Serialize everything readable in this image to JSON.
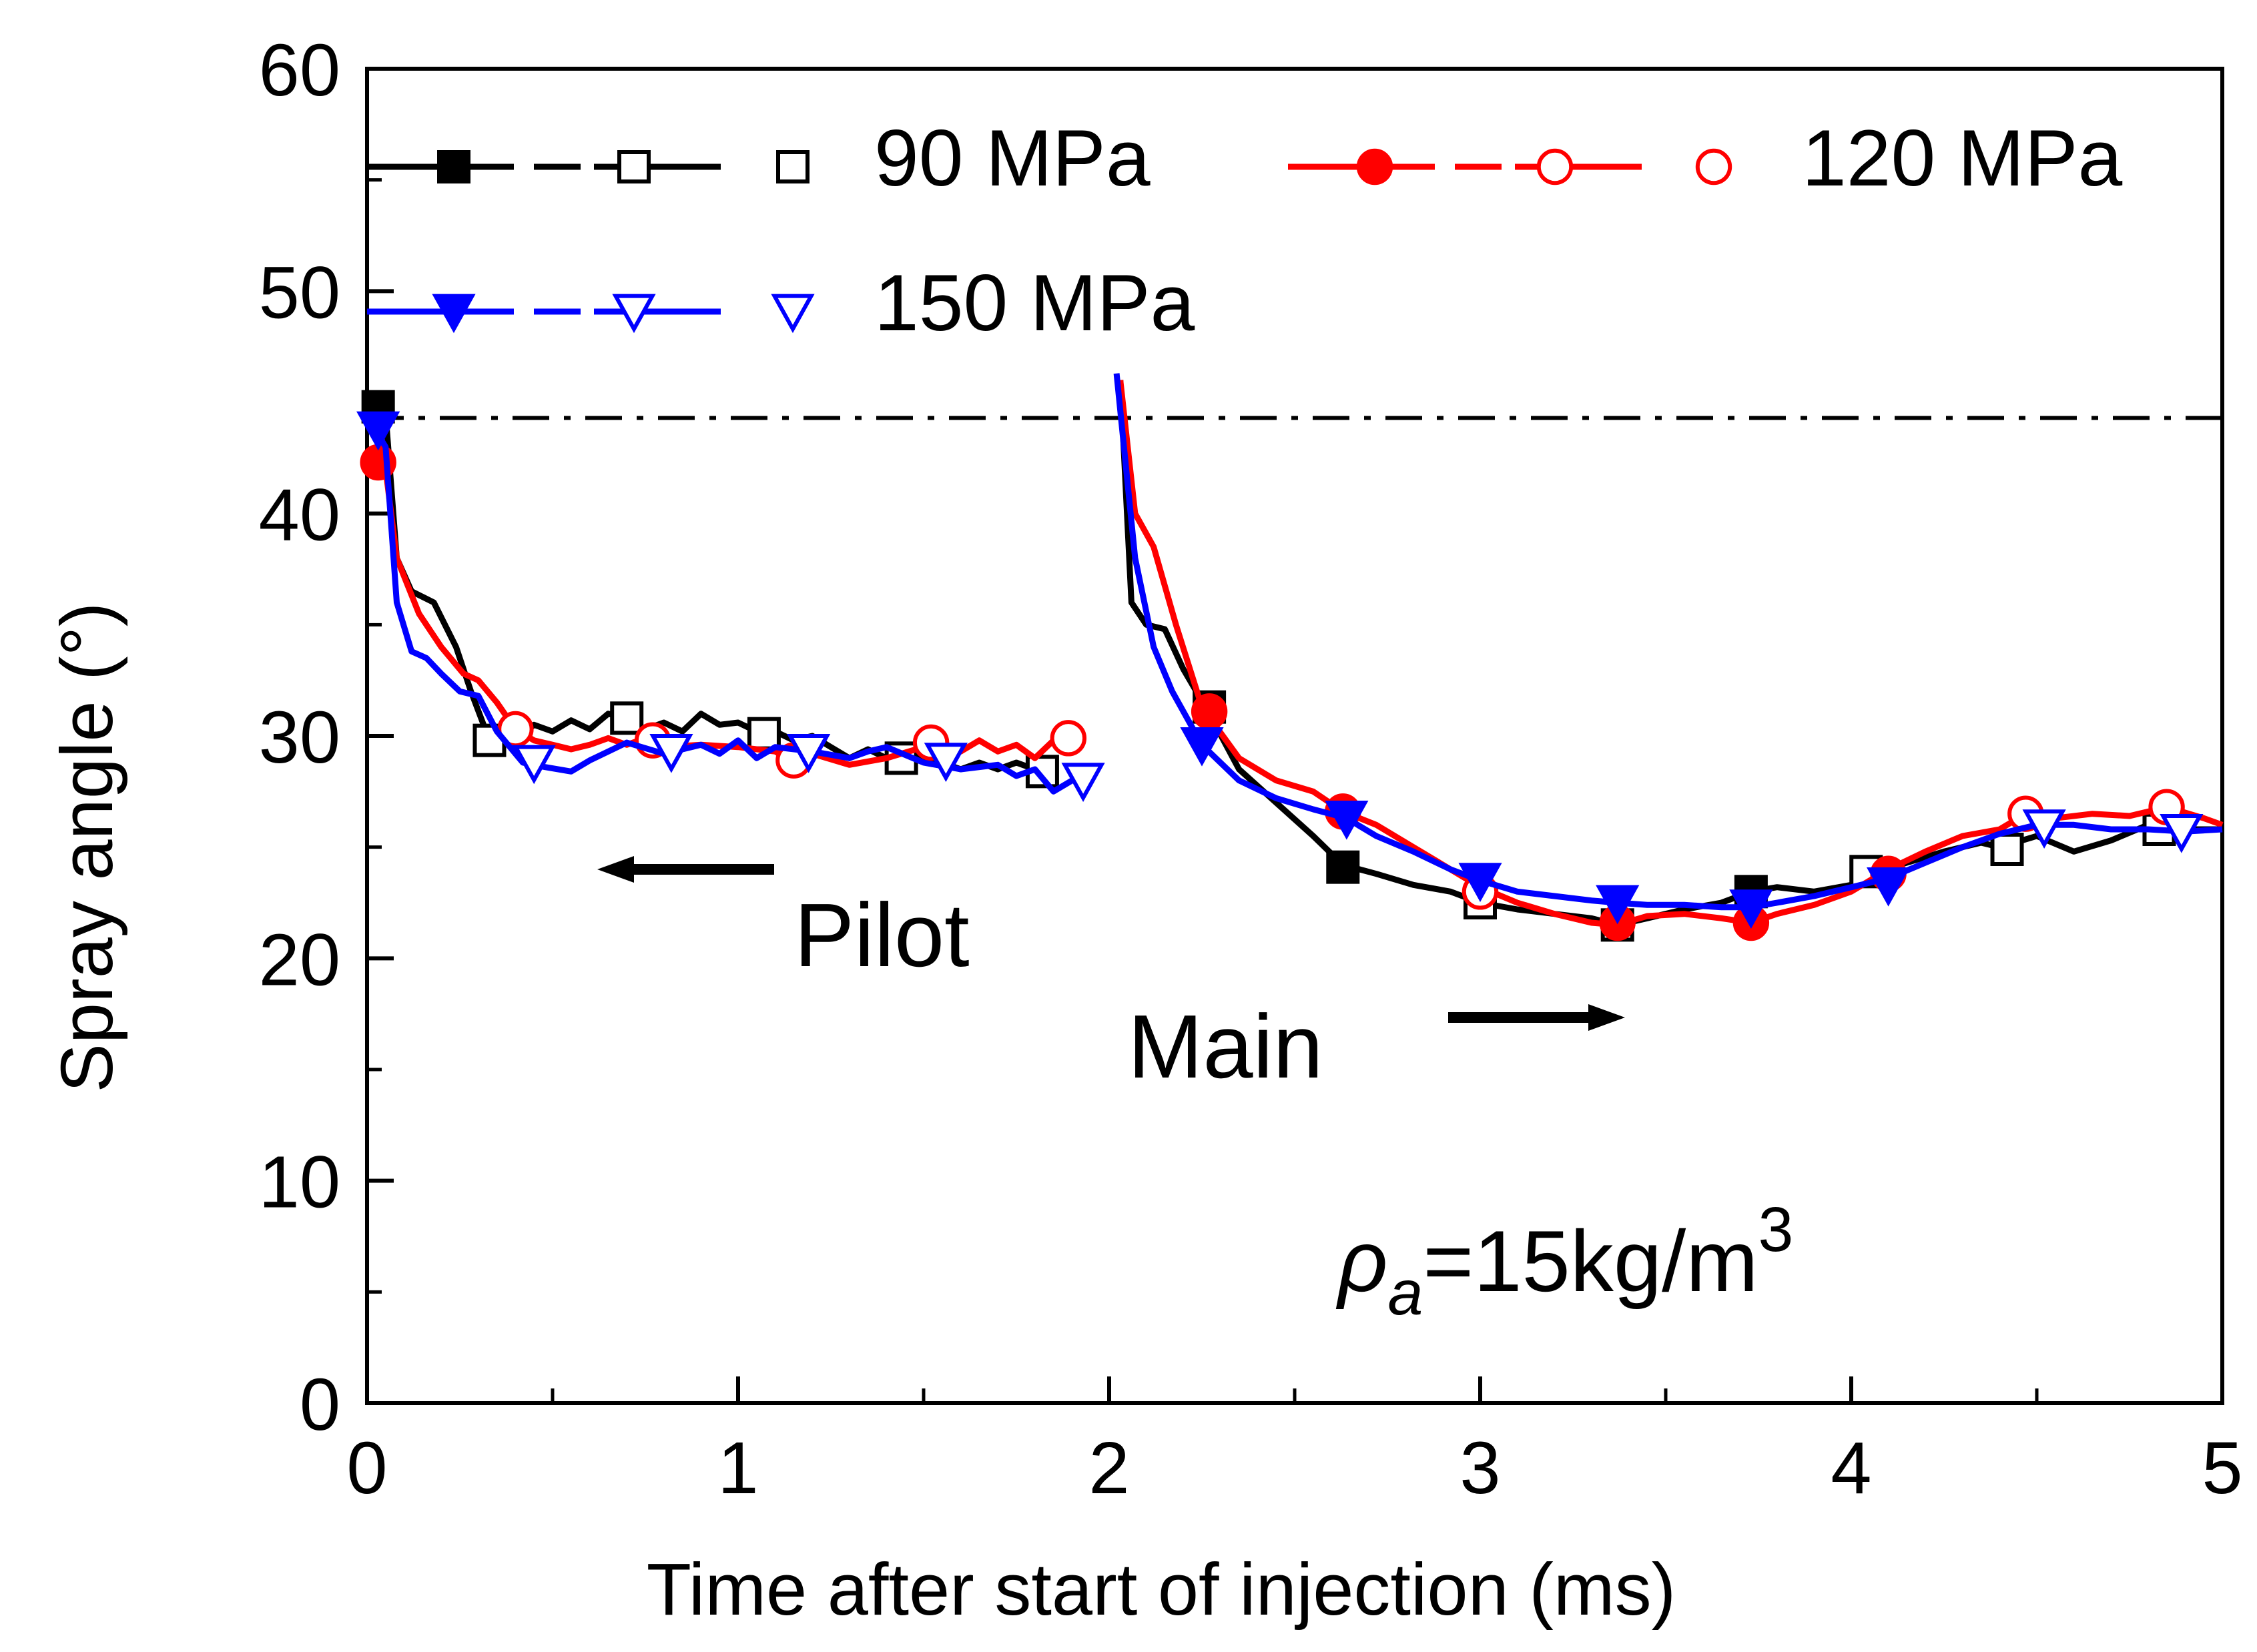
{
  "chart_data": {
    "type": "line",
    "xlabel": "Time after start of injection (ms)",
    "ylabel": "Spray angle (°)",
    "xlim": [
      0,
      5
    ],
    "ylim": [
      0,
      60
    ],
    "xticks": [
      0,
      1,
      2,
      3,
      4,
      5
    ],
    "yticks": [
      0,
      10,
      20,
      30,
      40,
      50,
      60
    ],
    "reference_line": {
      "y": 44.3,
      "style": "dash-dot"
    },
    "annotations": {
      "pilot": "Pilot",
      "main": "Main",
      "rho_symbol": "ρ",
      "rho_sub": "a",
      "rho_value": "=15kg/m",
      "rho_sup": "3"
    },
    "series": [
      {
        "name": "90 MPa",
        "color": "#000000",
        "marker": "square",
        "pilot": [
          [
            0.02,
            44.8
          ],
          [
            0.05,
            44.5
          ],
          [
            0.08,
            38
          ],
          [
            0.12,
            36.5
          ],
          [
            0.18,
            36
          ],
          [
            0.24,
            34
          ],
          [
            0.28,
            32
          ],
          [
            0.33,
            29.8
          ],
          [
            0.4,
            29.8
          ],
          [
            0.45,
            30.5
          ],
          [
            0.5,
            30.2
          ],
          [
            0.55,
            30.7
          ],
          [
            0.6,
            30.3
          ],
          [
            0.65,
            31
          ],
          [
            0.7,
            30.8
          ],
          [
            0.75,
            30.3
          ],
          [
            0.8,
            30.6
          ],
          [
            0.85,
            30.2
          ],
          [
            0.9,
            31
          ],
          [
            0.95,
            30.5
          ],
          [
            1.0,
            30.6
          ],
          [
            1.05,
            30.2
          ],
          [
            1.1,
            30.2
          ],
          [
            1.15,
            29.8
          ],
          [
            1.2,
            30.0
          ],
          [
            1.25,
            29.5
          ],
          [
            1.3,
            29.0
          ],
          [
            1.35,
            29.4
          ],
          [
            1.4,
            29.0
          ],
          [
            1.45,
            29.2
          ],
          [
            1.5,
            29.0
          ],
          [
            1.55,
            28.8
          ],
          [
            1.6,
            28.5
          ],
          [
            1.65,
            28.8
          ],
          [
            1.7,
            28.5
          ],
          [
            1.75,
            28.8
          ],
          [
            1.8,
            28.5
          ],
          [
            1.85,
            28.0
          ]
        ],
        "main": [
          [
            2.03,
            46
          ],
          [
            2.06,
            36
          ],
          [
            2.1,
            35
          ],
          [
            2.15,
            34.8
          ],
          [
            2.2,
            33
          ],
          [
            2.27,
            31
          ],
          [
            2.35,
            28.5
          ],
          [
            2.45,
            27
          ],
          [
            2.55,
            25.5
          ],
          [
            2.63,
            24.2
          ],
          [
            2.72,
            23.8
          ],
          [
            2.82,
            23.3
          ],
          [
            2.92,
            23
          ],
          [
            3.0,
            22.5
          ],
          [
            3.1,
            22.2
          ],
          [
            3.2,
            22
          ],
          [
            3.3,
            21.8
          ],
          [
            3.37,
            21.5
          ],
          [
            3.45,
            21.8
          ],
          [
            3.55,
            22.2
          ],
          [
            3.65,
            22.5
          ],
          [
            3.73,
            23
          ],
          [
            3.8,
            23.2
          ],
          [
            3.9,
            23
          ],
          [
            4.0,
            23.3
          ],
          [
            4.05,
            23.8
          ],
          [
            4.15,
            24.3
          ],
          [
            4.25,
            24.8
          ],
          [
            4.35,
            25.2
          ],
          [
            4.4,
            25
          ],
          [
            4.5,
            25.5
          ],
          [
            4.6,
            24.8
          ],
          [
            4.7,
            25.3
          ],
          [
            4.8,
            26
          ],
          [
            4.9,
            25.8
          ],
          [
            5.0,
            25.8
          ]
        ],
        "filled": [
          [
            0.03,
            44.8
          ],
          [
            2.27,
            31.3
          ],
          [
            2.63,
            24.1
          ],
          [
            3.73,
            23
          ]
        ],
        "open": [
          [
            0.33,
            29.8
          ],
          [
            0.7,
            30.8
          ],
          [
            1.07,
            30.1
          ],
          [
            1.44,
            29.0
          ],
          [
            1.82,
            28.4
          ],
          [
            3.0,
            22.5
          ],
          [
            3.37,
            21.5
          ],
          [
            4.04,
            23.9
          ],
          [
            4.42,
            24.9
          ],
          [
            4.83,
            25.8
          ]
        ]
      },
      {
        "name": "120 MPa",
        "color": "#ff0000",
        "marker": "circle",
        "pilot": [
          [
            0.02,
            42.3
          ],
          [
            0.05,
            42.0
          ],
          [
            0.08,
            38
          ],
          [
            0.14,
            35.5
          ],
          [
            0.2,
            34
          ],
          [
            0.26,
            32.8
          ],
          [
            0.3,
            32.5
          ],
          [
            0.35,
            31.5
          ],
          [
            0.4,
            30.3
          ],
          [
            0.45,
            29.8
          ],
          [
            0.5,
            29.6
          ],
          [
            0.55,
            29.4
          ],
          [
            0.6,
            29.6
          ],
          [
            0.65,
            29.9
          ],
          [
            0.7,
            29.6
          ],
          [
            0.75,
            29.9
          ],
          [
            0.8,
            29.5
          ],
          [
            0.9,
            29.6
          ],
          [
            1.0,
            29.5
          ],
          [
            1.1,
            29.3
          ],
          [
            1.15,
            28.8
          ],
          [
            1.2,
            29.2
          ],
          [
            1.3,
            28.7
          ],
          [
            1.4,
            29.0
          ],
          [
            1.5,
            29.5
          ],
          [
            1.55,
            29.7
          ],
          [
            1.6,
            29.3
          ],
          [
            1.65,
            29.8
          ],
          [
            1.7,
            29.3
          ],
          [
            1.75,
            29.6
          ],
          [
            1.8,
            29.0
          ],
          [
            1.85,
            29.8
          ],
          [
            1.88,
            29.9
          ]
        ],
        "main": [
          [
            2.03,
            46
          ],
          [
            2.07,
            40
          ],
          [
            2.12,
            38.5
          ],
          [
            2.18,
            35
          ],
          [
            2.25,
            31.3
          ],
          [
            2.35,
            29
          ],
          [
            2.45,
            28
          ],
          [
            2.55,
            27.5
          ],
          [
            2.63,
            26.6
          ],
          [
            2.72,
            26
          ],
          [
            2.82,
            25
          ],
          [
            2.92,
            24
          ],
          [
            3.0,
            23.2
          ],
          [
            3.1,
            22.5
          ],
          [
            3.2,
            22
          ],
          [
            3.3,
            21.6
          ],
          [
            3.37,
            21.5
          ],
          [
            3.45,
            21.9
          ],
          [
            3.55,
            22.0
          ],
          [
            3.65,
            21.8
          ],
          [
            3.73,
            21.6
          ],
          [
            3.8,
            22
          ],
          [
            3.9,
            22.4
          ],
          [
            4.0,
            23.0
          ],
          [
            4.1,
            24.0
          ],
          [
            4.2,
            24.8
          ],
          [
            4.3,
            25.5
          ],
          [
            4.4,
            25.8
          ],
          [
            4.47,
            26.5
          ],
          [
            4.55,
            26.3
          ],
          [
            4.65,
            26.5
          ],
          [
            4.75,
            26.4
          ],
          [
            4.85,
            26.8
          ],
          [
            4.95,
            26.3
          ],
          [
            5.0,
            26.0
          ]
        ],
        "filled": [
          [
            0.03,
            42.3
          ],
          [
            2.27,
            31.1
          ],
          [
            2.63,
            26.6
          ],
          [
            3.37,
            21.6
          ],
          [
            3.73,
            21.6
          ],
          [
            4.1,
            23.8
          ]
        ],
        "open": [
          [
            0.4,
            30.3
          ],
          [
            0.77,
            29.8
          ],
          [
            1.15,
            28.9
          ],
          [
            1.52,
            29.7
          ],
          [
            1.89,
            29.9
          ],
          [
            3.0,
            23.0
          ],
          [
            4.47,
            26.5
          ],
          [
            4.85,
            26.8
          ]
        ]
      },
      {
        "name": "150 MPa",
        "color": "#0000ff",
        "marker": "triangle-down",
        "pilot": [
          [
            0.02,
            43.8
          ],
          [
            0.05,
            43.0
          ],
          [
            0.08,
            36
          ],
          [
            0.12,
            33.8
          ],
          [
            0.16,
            33.5
          ],
          [
            0.2,
            32.8
          ],
          [
            0.25,
            32.0
          ],
          [
            0.3,
            31.8
          ],
          [
            0.35,
            30.2
          ],
          [
            0.42,
            28.8
          ],
          [
            0.48,
            28.6
          ],
          [
            0.55,
            28.4
          ],
          [
            0.6,
            28.9
          ],
          [
            0.7,
            29.7
          ],
          [
            0.8,
            29.2
          ],
          [
            0.9,
            29.6
          ],
          [
            0.95,
            29.2
          ],
          [
            1.0,
            29.8
          ],
          [
            1.05,
            29.0
          ],
          [
            1.1,
            29.5
          ],
          [
            1.2,
            29.3
          ],
          [
            1.3,
            29.0
          ],
          [
            1.35,
            29.3
          ],
          [
            1.4,
            29.5
          ],
          [
            1.5,
            28.8
          ],
          [
            1.6,
            28.5
          ],
          [
            1.7,
            28.7
          ],
          [
            1.75,
            28.2
          ],
          [
            1.8,
            28.5
          ],
          [
            1.85,
            27.5
          ],
          [
            1.9,
            28.0
          ],
          [
            1.93,
            28.0
          ]
        ],
        "main": [
          [
            2.02,
            46.3
          ],
          [
            2.07,
            38
          ],
          [
            2.12,
            34
          ],
          [
            2.17,
            32
          ],
          [
            2.25,
            29.6
          ],
          [
            2.35,
            28
          ],
          [
            2.45,
            27.2
          ],
          [
            2.55,
            26.7
          ],
          [
            2.64,
            26.3
          ],
          [
            2.72,
            25.5
          ],
          [
            2.82,
            24.8
          ],
          [
            2.92,
            24
          ],
          [
            3.0,
            23.5
          ],
          [
            3.1,
            23
          ],
          [
            3.2,
            22.8
          ],
          [
            3.3,
            22.6
          ],
          [
            3.37,
            22.5
          ],
          [
            3.45,
            22.4
          ],
          [
            3.55,
            22.4
          ],
          [
            3.65,
            22.3
          ],
          [
            3.73,
            22.3
          ],
          [
            3.8,
            22.5
          ],
          [
            3.9,
            22.8
          ],
          [
            4.0,
            23.2
          ],
          [
            4.1,
            23.6
          ],
          [
            4.2,
            24.3
          ],
          [
            4.3,
            25
          ],
          [
            4.4,
            25.6
          ],
          [
            4.5,
            26.0
          ],
          [
            4.6,
            26.0
          ],
          [
            4.7,
            25.8
          ],
          [
            4.8,
            25.8
          ],
          [
            4.9,
            25.7
          ],
          [
            5.0,
            25.8
          ]
        ],
        "filled": [
          [
            0.03,
            43.8
          ],
          [
            2.25,
            29.6
          ],
          [
            2.64,
            26.3
          ],
          [
            3.0,
            23.5
          ],
          [
            3.37,
            22.5
          ],
          [
            3.73,
            22.3
          ],
          [
            4.1,
            23.3
          ]
        ],
        "open": [
          [
            0.45,
            28.8
          ],
          [
            0.82,
            29.3
          ],
          [
            1.19,
            29.3
          ],
          [
            1.56,
            28.9
          ],
          [
            1.93,
            28.0
          ],
          [
            4.52,
            25.9
          ],
          [
            4.89,
            25.7
          ]
        ]
      }
    ]
  }
}
